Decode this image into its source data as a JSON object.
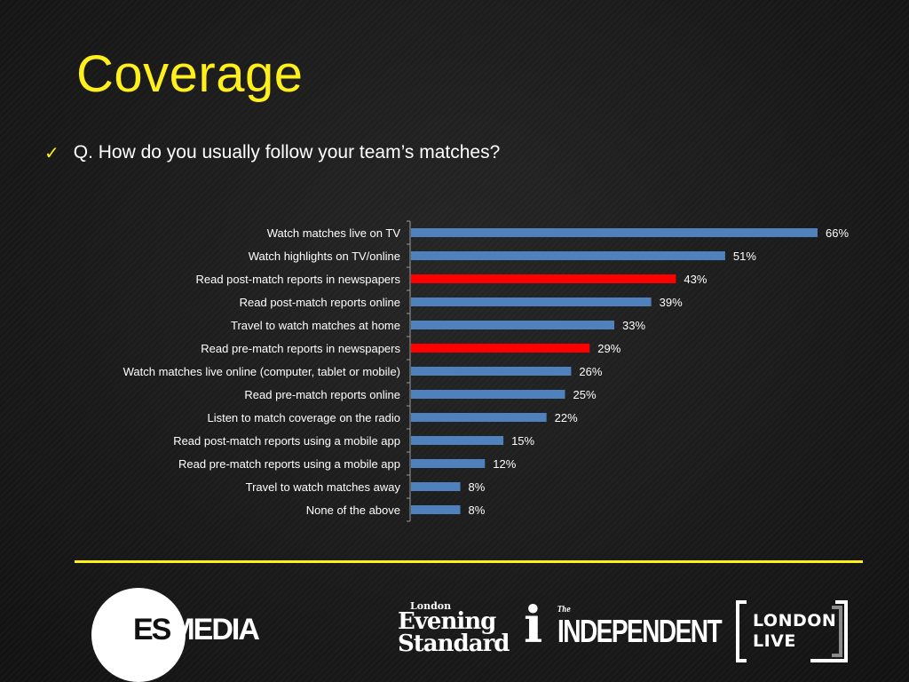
{
  "slide": {
    "title": "Coverage",
    "question": "Q. How do you usually follow your team’s matches?"
  },
  "chart_data": {
    "type": "bar",
    "orientation": "horizontal",
    "categories": [
      "Watch matches live on TV",
      "Watch highlights on TV/online",
      "Read post-match reports in newspapers",
      "Read post-match reports online",
      "Travel to watch matches at home",
      "Read pre-match reports in newspapers",
      "Watch matches live online (computer, tablet or mobile)",
      "Read pre-match reports online",
      "Listen to match coverage on the radio",
      "Read post-match reports using a mobile app",
      "Read pre-match reports using a mobile app",
      "Travel to watch matches away",
      "None of the above"
    ],
    "values": [
      66,
      51,
      43,
      39,
      33,
      29,
      26,
      25,
      22,
      15,
      12,
      8,
      8
    ],
    "value_labels": [
      "66%",
      "51%",
      "43%",
      "39%",
      "33%",
      "29%",
      "26%",
      "25%",
      "22%",
      "15%",
      "12%",
      "8%",
      "8%"
    ],
    "highlighted": [
      false,
      false,
      true,
      false,
      false,
      true,
      false,
      false,
      false,
      false,
      false,
      false,
      false
    ],
    "bar_color": "#4f81bd",
    "highlight_color": "#ff0000",
    "xlim": [
      0,
      66
    ],
    "grid": false,
    "legend": "none"
  },
  "logos": {
    "esmedia": {
      "es": "ES",
      "media": "MEDIA"
    },
    "standard": {
      "line1": "London",
      "line2": "Evening",
      "line3": "Standard"
    },
    "i": "i",
    "independent": {
      "the": "The",
      "name": "INDEPENDENT"
    },
    "london_live": {
      "line1": "LONDON",
      "line2": "LIVE"
    }
  },
  "colors": {
    "title": "#ffef1a",
    "rule": "#ffef1a",
    "text": "#ffffff"
  }
}
